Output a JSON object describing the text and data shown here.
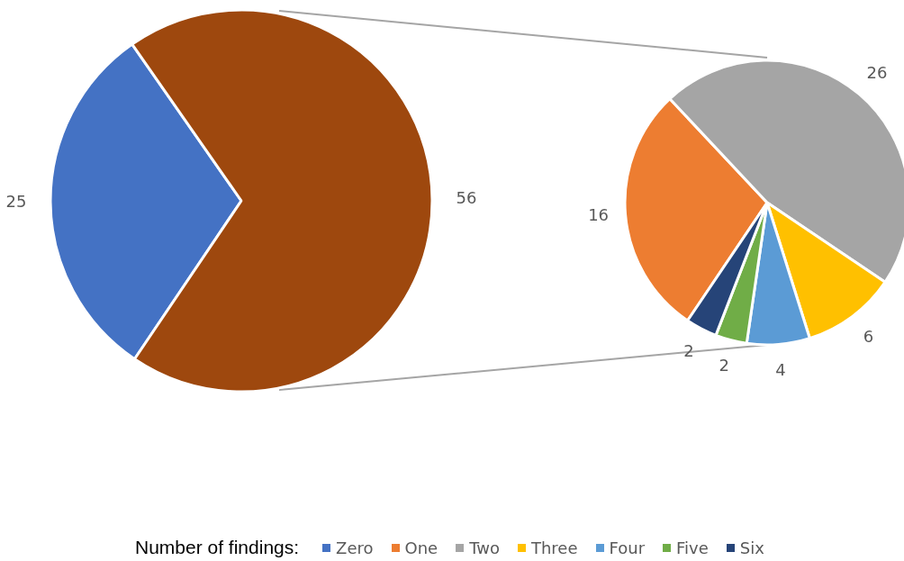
{
  "chart_data": [
    {
      "type": "pie",
      "categories": [
        "Zero",
        null
      ],
      "values": [
        25,
        56
      ],
      "colors": [
        "#4472c4",
        "#9e480e"
      ],
      "data_labels": true,
      "legend": "bottom",
      "legend_title": "Number of findings:"
    },
    {
      "type": "pie",
      "categories": [
        "One",
        "Two",
        "Three",
        "Four",
        "Five",
        "Six"
      ],
      "values": [
        16,
        26,
        6,
        4,
        2,
        2
      ],
      "colors": [
        "#ed7d31",
        "#a5a5a5",
        "#ffc000",
        "#5b9bd5",
        "#70ad47",
        "#264478"
      ],
      "data_labels": true,
      "legend": "bottom"
    }
  ]
}
